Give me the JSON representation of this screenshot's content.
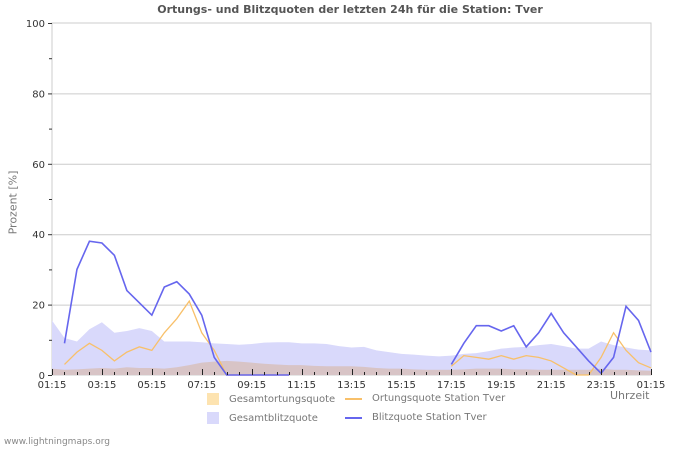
{
  "title": "Ortungs- und Blitzquoten der letzten 24h für die Station: Tver",
  "y_axis_label": "Prozent   [%]",
  "x_axis_unit": "Uhrzeit",
  "footer": "www.lightningmaps.org",
  "colors": {
    "gesamtortung_fill": "#fde3b0",
    "gesamtblitz_fill": "#d9d9fb",
    "overlap_fill": "#d8c4c6",
    "ortung_line": "#f8c06a",
    "blitz_line": "#6666ee",
    "grid": "#cccccc"
  },
  "legend": [
    {
      "label": "Gesamtortungsquote",
      "kind": "area",
      "color": "#fde3b0"
    },
    {
      "label": "Ortungsquote Station Tver",
      "kind": "line",
      "color": "#f8c06a"
    },
    {
      "label": "Gesamtblitzquote",
      "kind": "area",
      "color": "#d9d9fb"
    },
    {
      "label": "Blitzquote Station Tver",
      "kind": "line",
      "color": "#6666ee"
    }
  ],
  "chart_data": {
    "type": "line",
    "title": "Ortungs- und Blitzquoten der letzten 24h für die Station: Tver",
    "xlabel": "Uhrzeit",
    "ylabel": "Prozent [%]",
    "ylim": [
      0,
      100
    ],
    "yticks": [
      0,
      20,
      40,
      60,
      80,
      100
    ],
    "xticks": [
      "01:15",
      "03:15",
      "05:15",
      "07:15",
      "09:15",
      "11:15",
      "13:15",
      "15:15",
      "17:15",
      "19:15",
      "21:15",
      "23:15",
      "01:15"
    ],
    "grid": true,
    "legend_position": "bottom",
    "x_hours": [
      0.0,
      0.5,
      1.0,
      1.5,
      2.0,
      2.5,
      3.0,
      3.5,
      4.0,
      4.5,
      5.0,
      5.5,
      6.0,
      6.5,
      7.0,
      7.5,
      8.0,
      8.5,
      9.0,
      9.5,
      10.0,
      10.5,
      11.0,
      11.5,
      12.0,
      12.5,
      13.0,
      13.5,
      14.0,
      14.5,
      15.0,
      15.5,
      16.0,
      16.5,
      17.0,
      17.5,
      18.0,
      18.5,
      19.0,
      19.5,
      20.0,
      20.5,
      21.0,
      21.5,
      22.0,
      22.5,
      23.0,
      23.5,
      24.0
    ],
    "series": [
      {
        "name": "Gesamtblitzquote",
        "kind": "area",
        "values": [
          15.5,
          10.5,
          9.5,
          13,
          15,
          12,
          12.5,
          13.3,
          12.5,
          9.5,
          9.5,
          9.5,
          9.3,
          9,
          8.8,
          8.6,
          8.8,
          9.2,
          9.3,
          9.3,
          9,
          9,
          8.8,
          8.2,
          7.8,
          8,
          7,
          6.5,
          6,
          5.8,
          5.5,
          5.3,
          5.5,
          6,
          6.2,
          6.8,
          7.5,
          7.8,
          8,
          8.5,
          8.8,
          8.2,
          7.5,
          7.5,
          9.5,
          8.5,
          7.8,
          7.2,
          7
        ]
      },
      {
        "name": "Gesamtortungsquote",
        "kind": "area",
        "values": [
          1.8,
          1.5,
          1.6,
          1.8,
          2,
          1.8,
          2.2,
          2,
          2,
          1.8,
          2.2,
          2.8,
          3.5,
          3.8,
          4,
          3.8,
          3.5,
          3.2,
          3,
          2.8,
          2.8,
          2.6,
          2.5,
          2.5,
          2.5,
          2.3,
          2,
          1.8,
          1.8,
          1.6,
          1.5,
          1.5,
          1.5,
          1.6,
          1.8,
          1.8,
          1.8,
          1.6,
          1.6,
          1.5,
          1.5,
          1.5,
          1.5,
          1.5,
          1.8,
          1.5,
          1.5,
          1.3,
          1.2
        ]
      },
      {
        "name": "Ortungsquote Station Tver",
        "kind": "line",
        "values": [
          null,
          3,
          6.5,
          9,
          7,
          4,
          6.5,
          8,
          7,
          12,
          16,
          21,
          12,
          7,
          0,
          0,
          0,
          0,
          0,
          0,
          null,
          null,
          null,
          null,
          null,
          null,
          null,
          null,
          null,
          null,
          null,
          null,
          2.5,
          5.5,
          5,
          4.5,
          5.5,
          4.5,
          5.5,
          5,
          4,
          2,
          0,
          0,
          5,
          12,
          7,
          3.5,
          2
        ]
      },
      {
        "name": "Blitzquote Station Tver",
        "kind": "line",
        "values": [
          null,
          9,
          30,
          38,
          37.5,
          34,
          24,
          20.5,
          17,
          25,
          26.5,
          23,
          17,
          5,
          0,
          0,
          0,
          0,
          0,
          0,
          null,
          null,
          null,
          null,
          null,
          null,
          null,
          null,
          null,
          null,
          null,
          null,
          3,
          9,
          14,
          14,
          12.5,
          14,
          8,
          12,
          17.5,
          12,
          8,
          4,
          0.5,
          5,
          19.5,
          15.5,
          6.5
        ]
      }
    ]
  }
}
